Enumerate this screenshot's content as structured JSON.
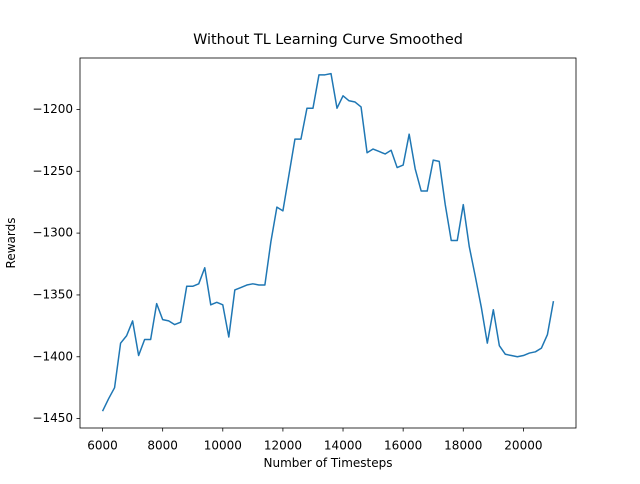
{
  "chart_data": {
    "type": "line",
    "title": "Without TL Learning Curve Smoothed",
    "xlabel": "Number of Timesteps",
    "ylabel": "Rewards",
    "x": [
      6000,
      6200,
      6400,
      6600,
      6800,
      7000,
      7200,
      7400,
      7600,
      7800,
      8000,
      8200,
      8400,
      8600,
      8800,
      9000,
      9200,
      9400,
      9600,
      9800,
      10000,
      10200,
      10400,
      10600,
      10800,
      11000,
      11200,
      11400,
      11600,
      11800,
      12000,
      12200,
      12400,
      12600,
      12800,
      13000,
      13200,
      13400,
      13600,
      13800,
      14000,
      14200,
      14400,
      14600,
      14800,
      15000,
      15200,
      15400,
      15600,
      15800,
      16000,
      16200,
      16400,
      16600,
      16800,
      17000,
      17200,
      17400,
      17600,
      17800,
      18000,
      18200,
      18400,
      18600,
      18800,
      19000,
      19200,
      19400,
      19600,
      19800,
      20000,
      20200,
      20400,
      20600,
      20800,
      21000
    ],
    "series": [
      {
        "name": "Rewards",
        "color": "#1f77b4",
        "values": [
          -1444,
          -1434,
          -1425,
          -1389,
          -1383,
          -1371,
          -1399,
          -1386,
          -1386,
          -1357,
          -1370,
          -1371,
          -1374,
          -1372,
          -1343,
          -1343,
          -1341,
          -1328,
          -1358,
          -1356,
          -1358,
          -1384,
          -1346,
          -1344,
          -1342,
          -1341,
          -1342,
          -1342,
          -1307,
          -1279,
          -1282,
          -1253,
          -1224,
          -1224,
          -1199,
          -1199,
          -1172,
          -1172,
          -1171,
          -1199,
          -1189,
          -1193,
          -1194,
          -1198,
          -1235,
          -1232,
          -1234,
          -1236,
          -1233,
          -1247,
          -1245,
          -1220,
          -1248,
          -1266,
          -1266,
          -1241,
          -1242,
          -1277,
          -1306,
          -1306,
          -1277,
          -1311,
          -1335,
          -1360,
          -1389,
          -1362,
          -1391,
          -1398,
          -1399,
          -1400,
          -1399,
          -1397,
          -1396,
          -1393,
          -1382,
          -1355
        ]
      }
    ],
    "xlim": [
      5250,
      21750
    ],
    "ylim": [
      -1457.6,
      -1158.4
    ],
    "xticks": [
      6000,
      8000,
      10000,
      12000,
      14000,
      16000,
      18000,
      20000
    ],
    "yticks": [
      {
        "value": -1450,
        "label": "−1450"
      },
      {
        "value": -1400,
        "label": "−1400"
      },
      {
        "value": -1350,
        "label": "−1350"
      },
      {
        "value": -1300,
        "label": "−1300"
      },
      {
        "value": -1250,
        "label": "−1250"
      },
      {
        "value": -1200,
        "label": "−1200"
      }
    ],
    "grid": false
  }
}
